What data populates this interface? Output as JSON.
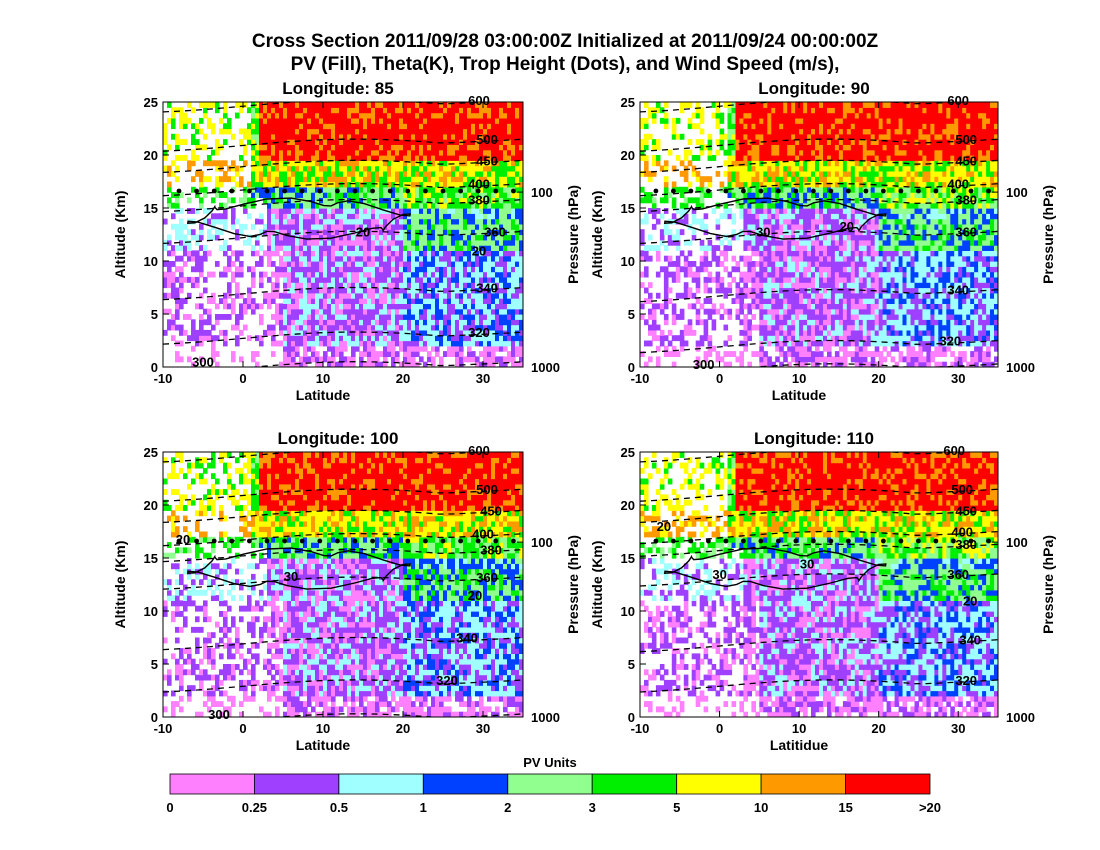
{
  "title_line1": "Cross Section 2011/09/28 03:00:00Z Initialized at 2011/09/24 00:00:00Z",
  "title_line2": "PV (Fill), Theta(K), Trop Height (Dots), and Wind Speed (m/s),",
  "colorbar": {
    "title": "PV Units",
    "labels": [
      "0",
      "0.25",
      "0.5",
      "1",
      "2",
      "3",
      "5",
      "10",
      "15",
      ">20"
    ],
    "colors": [
      "#ff80ff",
      "#a040ff",
      "#a0ffff",
      "#0040ff",
      "#90ff90",
      "#00ee00",
      "#ffff00",
      "#ff9900",
      "#ff0000"
    ]
  },
  "chart_data": [
    {
      "type": "heatmap",
      "title": "Longitude:  85",
      "xlabel": "Latitude",
      "ylabel": "Altitude (Km)",
      "y2label": "Pressure (hPa)",
      "xlim": [
        -10,
        35
      ],
      "ylim": [
        0,
        25
      ],
      "xticks": [
        "-10",
        "0",
        "10",
        "20",
        "30"
      ],
      "yticks": [
        "0",
        "5",
        "10",
        "15",
        "20",
        "25"
      ],
      "pressure_ticks": [
        {
          "label": "100",
          "alt": 16.5
        },
        {
          "label": "1000",
          "alt": 0
        }
      ],
      "theta_labels": [
        {
          "label": "600",
          "x": 29.5,
          "alt": 25.2
        },
        {
          "label": "500",
          "x": 30.5,
          "alt": 21.5
        },
        {
          "label": "450",
          "x": 30.5,
          "alt": 19.5
        },
        {
          "label": "400",
          "x": 29.5,
          "alt": 17.3
        },
        {
          "label": "380",
          "x": 29.5,
          "alt": 15.8
        },
        {
          "label": "360",
          "x": 31.5,
          "alt": 12.8
        },
        {
          "label": "340",
          "x": 30.5,
          "alt": 7.5
        },
        {
          "label": "320",
          "x": 29.5,
          "alt": 3.3
        },
        {
          "label": "300",
          "x": -5,
          "alt": 0.5
        }
      ],
      "wind_labels": [
        {
          "label": "20",
          "x": 15,
          "alt": 12.8
        },
        {
          "label": "20",
          "x": 29.5,
          "alt": 11
        }
      ],
      "trop_height_km": 16.6
    },
    {
      "type": "heatmap",
      "title": "Longitude:  90",
      "xlabel": "Latitude",
      "ylabel": "Altitude (Km)",
      "y2label": "Pressure (hPa)",
      "xlim": [
        -10,
        35
      ],
      "ylim": [
        0,
        25
      ],
      "xticks": [
        "-10",
        "0",
        "10",
        "20",
        "30"
      ],
      "yticks": [
        "0",
        "5",
        "10",
        "15",
        "20",
        "25"
      ],
      "pressure_ticks": [
        {
          "label": "100",
          "alt": 16.5
        },
        {
          "label": "1000",
          "alt": 0
        }
      ],
      "theta_labels": [
        {
          "label": "600",
          "x": 30,
          "alt": 25.2
        },
        {
          "label": "500",
          "x": 31,
          "alt": 21.5
        },
        {
          "label": "450",
          "x": 31,
          "alt": 19.5
        },
        {
          "label": "400",
          "x": 30,
          "alt": 17.3
        },
        {
          "label": "380",
          "x": 31,
          "alt": 15.8
        },
        {
          "label": "360",
          "x": 31,
          "alt": 12.8
        },
        {
          "label": "340",
          "x": 30,
          "alt": 7.3
        },
        {
          "label": "320",
          "x": 29,
          "alt": 2.5
        },
        {
          "label": "300",
          "x": -2,
          "alt": 0.3
        }
      ],
      "wind_labels": [
        {
          "label": "30",
          "x": 5.5,
          "alt": 12.8
        },
        {
          "label": "20",
          "x": 16,
          "alt": 13.3
        }
      ],
      "trop_height_km": 16.6
    },
    {
      "type": "heatmap",
      "title": "Longitude:  100",
      "xlabel": "Latitude",
      "ylabel": "Altitude (Km)",
      "y2label": "Pressure (hPa)",
      "xlim": [
        -10,
        35
      ],
      "ylim": [
        0,
        25
      ],
      "xticks": [
        "-10",
        "0",
        "10",
        "20",
        "30"
      ],
      "yticks": [
        "0",
        "5",
        "10",
        "15",
        "20",
        "25"
      ],
      "pressure_ticks": [
        {
          "label": "100",
          "alt": 16.5
        },
        {
          "label": "1000",
          "alt": 0
        }
      ],
      "theta_labels": [
        {
          "label": "600",
          "x": 29.5,
          "alt": 25.2
        },
        {
          "label": "500",
          "x": 30.5,
          "alt": 21.5
        },
        {
          "label": "450",
          "x": 31,
          "alt": 19.5
        },
        {
          "label": "400",
          "x": 30,
          "alt": 17.3
        },
        {
          "label": "380",
          "x": 31,
          "alt": 15.8
        },
        {
          "label": "360",
          "x": 30.5,
          "alt": 13.2
        },
        {
          "label": "340",
          "x": 28,
          "alt": 7.5
        },
        {
          "label": "320",
          "x": 25.5,
          "alt": 3.5
        },
        {
          "label": "300",
          "x": -3,
          "alt": 0.3
        }
      ],
      "wind_labels": [
        {
          "label": "20",
          "x": -7.5,
          "alt": 16.8
        },
        {
          "label": "30",
          "x": 6,
          "alt": 13.3
        },
        {
          "label": "20",
          "x": 29,
          "alt": 11.5
        }
      ],
      "trop_height_km": 16.6
    },
    {
      "type": "heatmap",
      "title": "Longitude:  110",
      "xlabel": "Latitidue",
      "ylabel": "Altitude (Km)",
      "y2label": "Pressure (hPa)",
      "xlim": [
        -10,
        35
      ],
      "ylim": [
        0,
        25
      ],
      "xticks": [
        "-10",
        "0",
        "10",
        "20",
        "30"
      ],
      "yticks": [
        "0",
        "5",
        "10",
        "15",
        "20",
        "25"
      ],
      "pressure_ticks": [
        {
          "label": "100",
          "alt": 16.5
        },
        {
          "label": "1000",
          "alt": 0
        }
      ],
      "theta_labels": [
        {
          "label": "600",
          "x": 29.5,
          "alt": 25.2
        },
        {
          "label": "500",
          "x": 30.5,
          "alt": 21.5
        },
        {
          "label": "450",
          "x": 31,
          "alt": 19.5
        },
        {
          "label": "400",
          "x": 30.5,
          "alt": 17.5
        },
        {
          "label": "380",
          "x": 31,
          "alt": 16.3
        },
        {
          "label": "360",
          "x": 30,
          "alt": 13.5
        },
        {
          "label": "340",
          "x": 31.5,
          "alt": 7.3
        },
        {
          "label": "320",
          "x": 31,
          "alt": 3.5
        }
      ],
      "wind_labels": [
        {
          "label": "20",
          "x": -7,
          "alt": 18
        },
        {
          "label": "30",
          "x": 0,
          "alt": 13.5
        },
        {
          "label": "30",
          "x": 11,
          "alt": 14.5
        },
        {
          "label": "20",
          "x": 31.5,
          "alt": 11
        }
      ],
      "trop_height_km": 16.6
    }
  ]
}
